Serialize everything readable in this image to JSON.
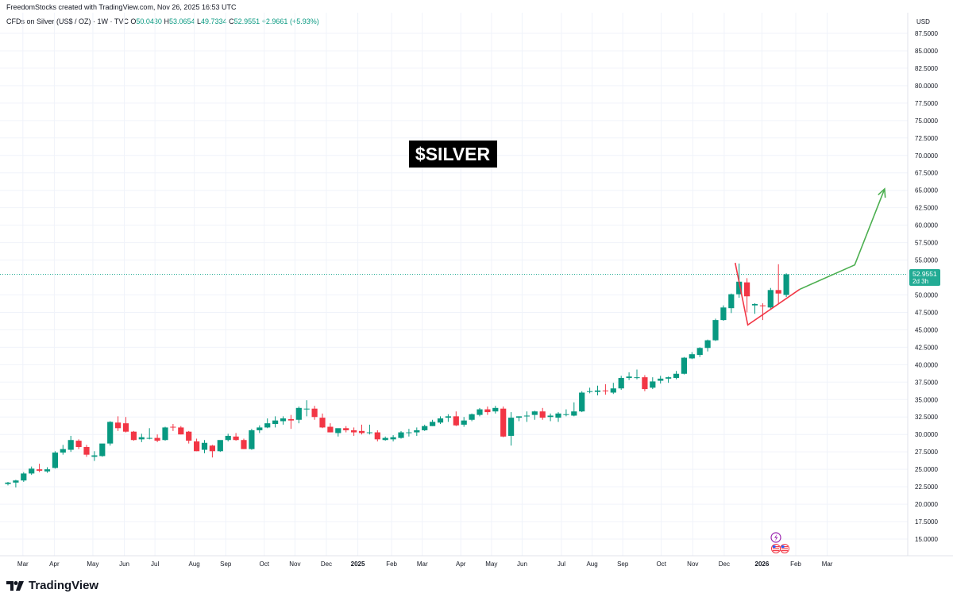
{
  "header": {
    "credit": "FreedomStocks created with TradingView.com, Nov 26, 2025 16:53 UTC",
    "symbol": "CFDs on Silver (US$ / OZ) · 1W · TVC",
    "o_label": "O",
    "o_value": "50.0430",
    "h_label": "H",
    "h_value": "53.0654",
    "l_label": "L",
    "l_value": "49.7334",
    "c_label": "C",
    "c_value": "52.9551",
    "change": "+2.9661 (+5.93%)"
  },
  "annotation": {
    "title": "$SILVER"
  },
  "price_label": {
    "value": "52.9551",
    "countdown": "2d 3h"
  },
  "footer": {
    "brand": "TradingView"
  },
  "colors": {
    "up": "#089981",
    "down": "#f23645",
    "projection": "#4caf50",
    "triangle": "#f23645",
    "accent": "#22ab94"
  },
  "icons": [
    "dividend-icon",
    "us-flag-icon"
  ],
  "chart_data": {
    "type": "candlestick",
    "currency": "USD",
    "ylim": [
      12.5,
      88.9
    ],
    "y_ticks": [
      "87.5000",
      "85.0000",
      "82.5000",
      "80.0000",
      "77.5000",
      "75.0000",
      "72.5000",
      "70.0000",
      "67.5000",
      "65.0000",
      "62.5000",
      "60.0000",
      "57.5000",
      "55.0000",
      "50.0000",
      "47.5000",
      "45.0000",
      "42.5000",
      "40.0000",
      "37.5000",
      "35.0000",
      "32.5000",
      "30.0000",
      "27.5000",
      "25.0000",
      "22.5000",
      "20.0000",
      "17.5000",
      "15.0000"
    ],
    "x_ticks": [
      {
        "label": "Mar",
        "i": 1.9
      },
      {
        "label": "Apr",
        "i": 5.9
      },
      {
        "label": "May",
        "i": 10.8
      },
      {
        "label": "Jun",
        "i": 14.8
      },
      {
        "label": "Jul",
        "i": 18.7
      },
      {
        "label": "Aug",
        "i": 23.7
      },
      {
        "label": "Sep",
        "i": 27.7
      },
      {
        "label": "Oct",
        "i": 32.6
      },
      {
        "label": "Nov",
        "i": 36.5
      },
      {
        "label": "Dec",
        "i": 40.5
      },
      {
        "label": "2025",
        "i": 44.5
      },
      {
        "label": "Feb",
        "i": 48.8
      },
      {
        "label": "Mar",
        "i": 52.7
      },
      {
        "label": "Apr",
        "i": 57.6
      },
      {
        "label": "May",
        "i": 61.5
      },
      {
        "label": "Jun",
        "i": 65.4
      },
      {
        "label": "Jul",
        "i": 70.4
      },
      {
        "label": "Aug",
        "i": 74.3
      },
      {
        "label": "Sep",
        "i": 78.2
      },
      {
        "label": "Oct",
        "i": 83.1
      },
      {
        "label": "Nov",
        "i": 87.1
      },
      {
        "label": "Dec",
        "i": 91.1
      },
      {
        "label": "2026",
        "i": 95.9
      },
      {
        "label": "Feb",
        "i": 100.2
      },
      {
        "label": "Mar",
        "i": 104.2
      }
    ],
    "candles": [
      [
        22.9,
        23.2,
        22.7,
        23.1
      ],
      [
        23.1,
        23.5,
        22.4,
        23.4
      ],
      [
        23.4,
        24.6,
        23.2,
        24.4
      ],
      [
        24.4,
        25.4,
        24.2,
        25.1
      ],
      [
        25.0,
        25.8,
        24.6,
        24.8
      ],
      [
        24.7,
        25.3,
        24.5,
        25.0
      ],
      [
        25.2,
        27.6,
        25.1,
        27.4
      ],
      [
        27.4,
        28.5,
        27.1,
        27.9
      ],
      [
        27.8,
        29.8,
        27.5,
        29.2
      ],
      [
        29.1,
        29.3,
        27.9,
        28.2
      ],
      [
        28.2,
        28.5,
        26.8,
        27.1
      ],
      [
        26.8,
        27.6,
        26.2,
        27.0
      ],
      [
        26.9,
        28.6,
        26.8,
        28.7
      ],
      [
        28.7,
        31.9,
        28.4,
        31.8
      ],
      [
        31.7,
        32.6,
        30.5,
        30.9
      ],
      [
        31.6,
        32.5,
        30.3,
        30.4
      ],
      [
        30.4,
        30.5,
        29.1,
        29.2
      ],
      [
        29.3,
        30.1,
        28.9,
        29.6
      ],
      [
        29.4,
        30.9,
        29.3,
        29.5
      ],
      [
        29.5,
        30.0,
        28.9,
        29.1
      ],
      [
        29.2,
        31.1,
        29.1,
        31.0
      ],
      [
        31.1,
        31.5,
        30.5,
        31.0
      ],
      [
        31.0,
        31.2,
        30.0,
        30.0
      ],
      [
        30.4,
        30.5,
        28.7,
        29.1
      ],
      [
        29.0,
        29.4,
        27.6,
        27.6
      ],
      [
        27.8,
        29.2,
        27.3,
        28.8
      ],
      [
        28.4,
        28.5,
        26.7,
        27.6
      ],
      [
        27.6,
        29.0,
        27.5,
        29.2
      ],
      [
        29.2,
        30.1,
        29.0,
        29.8
      ],
      [
        29.7,
        30.2,
        29.1,
        29.2
      ],
      [
        29.2,
        29.4,
        27.9,
        27.9
      ],
      [
        27.9,
        30.8,
        27.8,
        30.6
      ],
      [
        30.6,
        31.3,
        30.2,
        31.0
      ],
      [
        31.0,
        32.3,
        30.9,
        31.6
      ],
      [
        31.5,
        32.6,
        31.0,
        32.0
      ],
      [
        31.9,
        32.6,
        31.4,
        32.3
      ],
      [
        32.2,
        32.8,
        30.8,
        32.0
      ],
      [
        32.1,
        34.0,
        31.6,
        33.8
      ],
      [
        33.6,
        34.9,
        32.6,
        33.7
      ],
      [
        33.7,
        34.1,
        32.1,
        32.5
      ],
      [
        32.4,
        33.0,
        30.9,
        31.0
      ],
      [
        31.1,
        31.6,
        30.3,
        30.3
      ],
      [
        30.2,
        30.5,
        29.7,
        30.9
      ],
      [
        30.9,
        31.2,
        30.3,
        30.6
      ],
      [
        30.6,
        31.0,
        29.8,
        30.3
      ],
      [
        30.5,
        31.4,
        30.0,
        30.2
      ],
      [
        30.2,
        31.4,
        30.0,
        30.3
      ],
      [
        30.3,
        30.6,
        29.0,
        29.3
      ],
      [
        29.2,
        29.7,
        29.1,
        29.5
      ],
      [
        29.3,
        29.9,
        29.0,
        29.6
      ],
      [
        29.5,
        30.5,
        29.4,
        30.3
      ],
      [
        30.3,
        30.8,
        29.7,
        30.3
      ],
      [
        30.3,
        31.0,
        29.8,
        30.6
      ],
      [
        30.6,
        31.4,
        30.5,
        31.2
      ],
      [
        31.2,
        32.1,
        31.2,
        31.8
      ],
      [
        31.7,
        32.6,
        31.5,
        32.3
      ],
      [
        32.4,
        32.9,
        31.8,
        32.6
      ],
      [
        32.6,
        33.3,
        31.2,
        31.3
      ],
      [
        31.4,
        32.5,
        31.1,
        32.0
      ],
      [
        32.1,
        33.0,
        31.9,
        32.9
      ],
      [
        32.8,
        33.8,
        32.6,
        33.6
      ],
      [
        33.6,
        34.0,
        32.8,
        33.2
      ],
      [
        33.3,
        34.1,
        33.0,
        33.8
      ],
      [
        33.7,
        34.0,
        29.6,
        29.7
      ],
      [
        29.8,
        33.2,
        28.4,
        32.4
      ],
      [
        32.4,
        32.6,
        31.9,
        32.6
      ],
      [
        32.6,
        33.3,
        31.8,
        32.7
      ],
      [
        32.8,
        33.4,
        32.1,
        33.3
      ],
      [
        33.3,
        33.8,
        32.1,
        32.4
      ],
      [
        32.5,
        33.0,
        31.9,
        32.7
      ],
      [
        32.4,
        33.2,
        31.8,
        33.0
      ],
      [
        32.8,
        33.6,
        32.6,
        32.9
      ],
      [
        32.7,
        34.6,
        32.6,
        33.3
      ],
      [
        33.3,
        36.2,
        33.2,
        36.0
      ],
      [
        36.1,
        36.7,
        35.9,
        36.2
      ],
      [
        36.1,
        37.0,
        35.6,
        36.3
      ],
      [
        36.3,
        37.2,
        35.7,
        36.2
      ],
      [
        36.0,
        37.4,
        35.8,
        36.6
      ],
      [
        36.6,
        38.4,
        36.4,
        38.1
      ],
      [
        38.1,
        38.9,
        37.8,
        38.3
      ],
      [
        38.2,
        39.3,
        37.9,
        38.2
      ],
      [
        38.2,
        38.5,
        36.2,
        36.5
      ],
      [
        36.7,
        38.2,
        36.5,
        37.6
      ],
      [
        37.7,
        38.4,
        37.3,
        38.0
      ],
      [
        38.0,
        38.3,
        37.4,
        38.2
      ],
      [
        38.1,
        39.1,
        37.9,
        38.7
      ],
      [
        38.7,
        41.1,
        38.6,
        41.0
      ],
      [
        40.9,
        41.8,
        40.8,
        41.5
      ],
      [
        41.4,
        42.5,
        41.1,
        42.4
      ],
      [
        42.4,
        43.6,
        41.9,
        43.5
      ],
      [
        43.5,
        46.6,
        43.4,
        46.4
      ],
      [
        46.4,
        48.5,
        46.3,
        48.2
      ],
      [
        48.1,
        50.2,
        47.4,
        50.1
      ],
      [
        50.1,
        54.5,
        49.6,
        51.9
      ],
      [
        51.8,
        52.4,
        47.5,
        49.8
      ],
      [
        48.5,
        48.8,
        47.3,
        48.7
      ],
      [
        48.5,
        48.8,
        46.4,
        48.4
      ],
      [
        48.2,
        51.0,
        48.0,
        50.7
      ],
      [
        50.7,
        54.4,
        48.7,
        50.2
      ],
      [
        50.0,
        53.1,
        49.7,
        52.96
      ]
    ],
    "candle_order": [
      "open",
      "high",
      "low",
      "close"
    ],
    "last_price": 52.9551,
    "triangle": [
      {
        "i": 92.5,
        "y": 54.6
      },
      {
        "i": 94.1,
        "y": 45.7
      },
      {
        "i": 100.7,
        "y": 50.8
      }
    ],
    "projection": [
      {
        "i": 100.7,
        "y": 50.8
      },
      {
        "i": 107.7,
        "y": 54.3
      },
      {
        "i": 111.5,
        "y": 65.2
      }
    ]
  }
}
